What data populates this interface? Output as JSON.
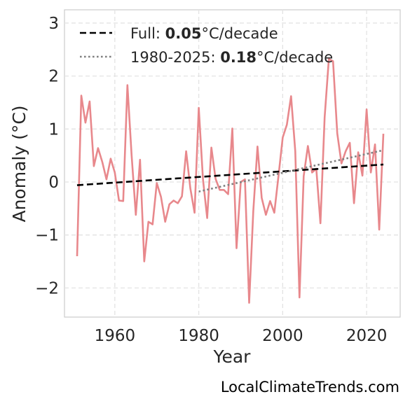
{
  "chart_data": {
    "type": "line",
    "title": "",
    "xlabel": "Year",
    "ylabel": "Anomaly (°C)",
    "xlim": [
      1948,
      2028
    ],
    "ylim": [
      -2.55,
      3.25
    ],
    "x_ticks": [
      1960,
      1980,
      2000,
      2020
    ],
    "y_ticks": [
      3,
      2,
      1,
      0,
      -1,
      -2
    ],
    "y_tick_labels": [
      "3",
      "2",
      "1",
      "0",
      "−1",
      "−2"
    ],
    "grid": true,
    "legend_position": "top-left",
    "series": [
      {
        "name": "",
        "color": "#e8888c",
        "x": [
          1951,
          1952,
          1953,
          1954,
          1955,
          1956,
          1957,
          1958,
          1959,
          1960,
          1961,
          1962,
          1963,
          1964,
          1965,
          1966,
          1967,
          1968,
          1969,
          1970,
          1971,
          1972,
          1973,
          1974,
          1975,
          1976,
          1977,
          1978,
          1979,
          1980,
          1981,
          1982,
          1983,
          1984,
          1985,
          1986,
          1987,
          1988,
          1989,
          1990,
          1991,
          1992,
          1993,
          1994,
          1995,
          1996,
          1997,
          1998,
          1999,
          2000,
          2001,
          2002,
          2003,
          2004,
          2005,
          2006,
          2007,
          2008,
          2009,
          2010,
          2011,
          2012,
          2013,
          2014,
          2015,
          2016,
          2017,
          2018,
          2019,
          2020,
          2021,
          2022,
          2023,
          2024
        ],
        "y": [
          -1.4,
          1.63,
          1.12,
          1.52,
          0.3,
          0.64,
          0.38,
          0.05,
          0.44,
          0.18,
          -0.35,
          -0.36,
          1.83,
          0.5,
          -0.62,
          0.42,
          -1.5,
          -0.75,
          -0.8,
          -0.02,
          -0.28,
          -0.75,
          -0.42,
          -0.35,
          -0.4,
          -0.27,
          0.58,
          -0.12,
          -0.58,
          1.4,
          0.05,
          -0.68,
          0.65,
          0.06,
          -0.15,
          -0.15,
          -0.23,
          1.01,
          -1.25,
          0.0,
          0.05,
          -2.28,
          -0.55,
          0.67,
          -0.3,
          -0.62,
          -0.36,
          -0.58,
          0.12,
          0.84,
          1.08,
          1.62,
          0.58,
          -2.18,
          0.11,
          0.68,
          0.18,
          0.25,
          -0.78,
          1.22,
          2.32,
          2.28,
          0.92,
          0.35,
          0.58,
          0.74,
          -0.4,
          0.56,
          0.12,
          1.37,
          0.18,
          0.71,
          -0.9,
          0.91
        ]
      }
    ],
    "trend_lines": [
      {
        "name_prefix": "Full: ",
        "name_value": "0.05",
        "name_suffix": "°C/decade",
        "style": "dashed",
        "color": "#000000",
        "x": [
          1951,
          2024
        ],
        "y": [
          -0.06,
          0.33
        ]
      },
      {
        "name_prefix": "1980-2025: ",
        "name_value": "0.18",
        "name_suffix": "°C/decade",
        "style": "dotted",
        "color": "#808080",
        "x": [
          1980,
          2024
        ],
        "y": [
          -0.18,
          0.6
        ]
      }
    ]
  },
  "credit": "LocalClimateTrends.com"
}
